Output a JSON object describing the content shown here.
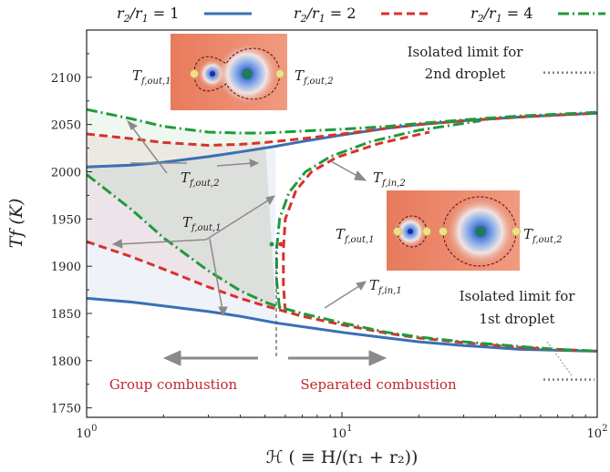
{
  "chart_data": {
    "type": "line",
    "xlabel": "ℋ ( ≡ H/(r₁ + r₂))",
    "ylabel": "Tf (K)",
    "xscale": "log",
    "xlim": [
      1,
      100
    ],
    "ylim": [
      1740,
      2150
    ],
    "x_ticks": [
      "10^0",
      "10^1",
      "10^2"
    ],
    "x_tick_labels": [
      {
        "base": "10",
        "exp": "0"
      },
      {
        "base": "10",
        "exp": "1"
      },
      {
        "base": "10",
        "exp": "2"
      }
    ],
    "x_tick_values": [
      1,
      10,
      100
    ],
    "y_ticks": [
      1750,
      1800,
      1850,
      1900,
      1950,
      2000,
      2050,
      2100
    ],
    "legend_position": "top",
    "series": [
      {
        "name": "r2/r1 = 1",
        "legend": {
          "num": "r",
          "num_sub": "2",
          "den": "r",
          "den_sub": "1",
          "value": "1"
        },
        "color": "#3a6fb5",
        "style": "solid",
        "upper": {
          "x": [
            1,
            1.5,
            2,
            3,
            4,
            5.5,
            7,
            10,
            15,
            20,
            30,
            50,
            70,
            100
          ],
          "y": [
            2005,
            2007,
            2010,
            2016,
            2021,
            2027,
            2032,
            2039,
            2046,
            2050,
            2054,
            2058,
            2060,
            2062
          ]
        },
        "lower": {
          "x": [
            1,
            1.5,
            2,
            3,
            4,
            5.5,
            7,
            10,
            15,
            20,
            30,
            50,
            70,
            100
          ],
          "y": [
            1866,
            1862,
            1858,
            1852,
            1847,
            1840,
            1836,
            1830,
            1824,
            1820,
            1816,
            1812,
            1811,
            1810
          ]
        }
      },
      {
        "name": "r2/r1 = 2",
        "legend": {
          "num": "r",
          "num_sub": "2",
          "den": "r",
          "den_sub": "1",
          "value": "2"
        },
        "color": "#d9312b",
        "style": "dashed",
        "upper": {
          "x": [
            1,
            1.5,
            2,
            3,
            4,
            5,
            7,
            10,
            15,
            20,
            30,
            50,
            70,
            100
          ],
          "y": [
            2040,
            2035,
            2031,
            2028,
            2029,
            2031,
            2035,
            2040,
            2046,
            2050,
            2054,
            2058,
            2060,
            2062
          ]
        },
        "lower": {
          "x": [
            1,
            1.5,
            2,
            3,
            4,
            5,
            5.5,
            6,
            7,
            10,
            15,
            20,
            30,
            50,
            70,
            100
          ],
          "y": [
            1926,
            1910,
            1897,
            1878,
            1866,
            1858,
            1855,
            1852,
            1847,
            1838,
            1829,
            1824,
            1819,
            1814,
            1812,
            1810
          ]
        },
        "turning": {
          "x": [
            6,
            5.9,
            5.9,
            6,
            6.6,
            7.6,
            9.5,
            14,
            22
          ],
          "y": [
            1852,
            1880,
            1918,
            1950,
            1980,
            2000,
            2015,
            2030,
            2042
          ]
        }
      },
      {
        "name": "r2/r1 = 4",
        "legend": {
          "num": "r",
          "num_sub": "2",
          "den": "r",
          "den_sub": "1",
          "value": "4"
        },
        "color": "#1f9a3c",
        "style": "dashdot",
        "upper": {
          "x": [
            1,
            1.5,
            2,
            3,
            4,
            5,
            7,
            10,
            15,
            20,
            30,
            50,
            70,
            100
          ],
          "y": [
            2066,
            2056,
            2048,
            2042,
            2041,
            2041,
            2043,
            2045,
            2048,
            2051,
            2055,
            2059,
            2061,
            2063
          ]
        },
        "lower": {
          "x": [
            1,
            1.5,
            2,
            3,
            4,
            5,
            5.5,
            6,
            7,
            10,
            15,
            20,
            30,
            50,
            70,
            100
          ],
          "y": [
            1997,
            1960,
            1930,
            1895,
            1874,
            1862,
            1858,
            1855,
            1850,
            1840,
            1830,
            1825,
            1820,
            1815,
            1812,
            1810
          ]
        },
        "turning": {
          "x": [
            5.7,
            5.55,
            5.55,
            5.7,
            6.2,
            7.2,
            9,
            13,
            20,
            35
          ],
          "y": [
            1855,
            1885,
            1918,
            1950,
            1978,
            2000,
            2016,
            2032,
            2044,
            2054
          ]
        }
      }
    ],
    "annotations": [
      {
        "text": "Isolated limit for",
        "line2": "2nd droplet"
      },
      {
        "text": "Isolated limit for",
        "line2": "1st droplet"
      },
      {
        "text": "Group combustion"
      },
      {
        "text": "Separated combustion"
      }
    ],
    "isolated_limits": [
      {
        "value": 2105
      },
      {
        "value": 1780
      }
    ],
    "inset_labels": [
      {
        "base": "T",
        "sub": "f,out,1"
      },
      {
        "base": "T",
        "sub": "f,out,2"
      },
      {
        "base": "T",
        "sub": "f,in,2"
      },
      {
        "base": "T",
        "sub": "f,in,1"
      }
    ]
  }
}
